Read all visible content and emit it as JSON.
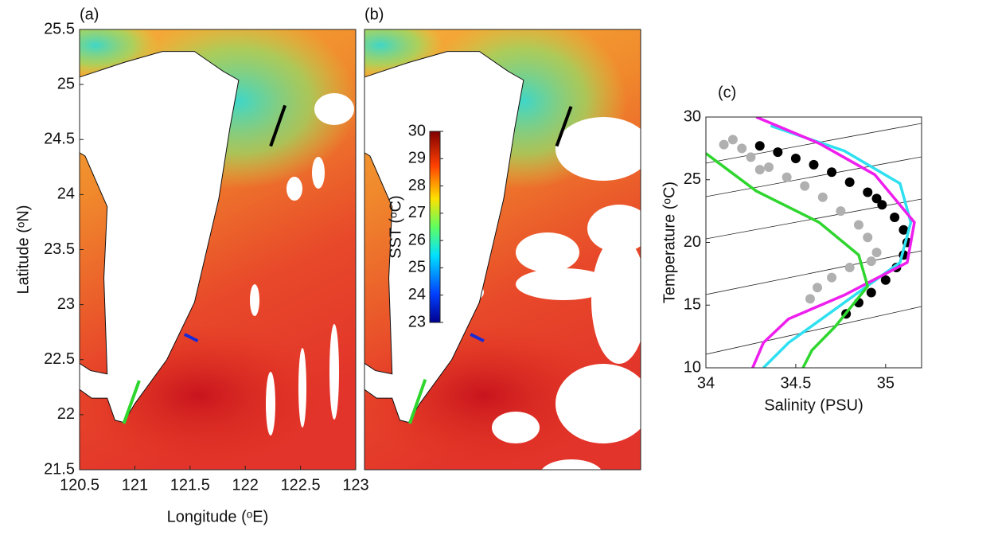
{
  "chart_data": [
    {
      "type": "map",
      "panel_label": "(a)",
      "xlabel": "Longitude (ᵒE)",
      "ylabel": "Latitude (ᵒN)",
      "xlim": [
        120.5,
        123
      ],
      "ylim": [
        21.5,
        25.5
      ],
      "xticks": [
        120.5,
        121,
        121.5,
        122,
        122.5,
        123
      ],
      "yticks": [
        21.5,
        22,
        22.5,
        23,
        23.5,
        24,
        24.5,
        25,
        25.5
      ],
      "transects": [
        {
          "color": "#000000",
          "lon": [
            122.23,
            122.36
          ],
          "lat": [
            24.44,
            24.81
          ]
        },
        {
          "color": "#1a2bd6",
          "lon": [
            121.45,
            121.57
          ],
          "lat": [
            22.73,
            22.67
          ]
        },
        {
          "color": "#2ed62e",
          "lon": [
            120.9,
            121.04
          ],
          "lat": [
            21.92,
            22.31
          ]
        }
      ]
    },
    {
      "type": "map",
      "panel_label": "(b)",
      "xlim": [
        120.5,
        123
      ],
      "ylim": [
        21.5,
        25.5
      ],
      "transects": [
        {
          "color": "#000000",
          "lon": [
            122.24,
            122.37
          ],
          "lat": [
            24.44,
            24.8
          ]
        },
        {
          "color": "#1a2bd6",
          "lon": [
            121.46,
            121.58
          ],
          "lat": [
            22.73,
            22.67
          ]
        },
        {
          "color": "#2ed62e",
          "lon": [
            120.91,
            121.05
          ],
          "lat": [
            21.92,
            22.32
          ]
        }
      ],
      "colorbar": {
        "label": "SST (ᵒC)",
        "lim": [
          23,
          30
        ],
        "ticks": [
          23,
          24,
          25,
          26,
          27,
          28,
          29,
          30
        ]
      }
    },
    {
      "type": "scatter",
      "panel_label": "(c)",
      "xlabel": "Salinity (PSU)",
      "ylabel": "Temperature (ᵒC)",
      "xlim": [
        34,
        35.2
      ],
      "ylim": [
        10,
        30
      ],
      "xticks": [
        34,
        34.5,
        35
      ],
      "yticks": [
        10,
        15,
        20,
        25,
        30
      ],
      "series": [
        {
          "color": "#b0b0b0",
          "mode": "markers",
          "x": [
            34.1,
            34.15,
            34.2,
            34.25,
            34.3,
            34.35,
            34.45,
            34.55,
            34.65,
            34.75,
            34.85,
            34.9,
            34.95,
            34.92,
            34.8,
            34.7,
            34.62,
            34.58
          ],
          "y": [
            27.8,
            28.2,
            27.5,
            26.8,
            25.8,
            26,
            25.2,
            24.5,
            23.6,
            22.5,
            21.4,
            20.4,
            19.2,
            18.5,
            18,
            17.2,
            16.4,
            15.5
          ]
        },
        {
          "color": "#000000",
          "mode": "markers",
          "x": [
            34.3,
            34.4,
            34.5,
            34.6,
            34.7,
            34.8,
            34.9,
            34.95,
            34.98,
            35.05,
            35.1,
            35.12,
            35.1,
            35.06,
            35,
            34.92,
            34.85,
            34.78
          ],
          "y": [
            27.7,
            27.2,
            26.7,
            26.2,
            25.6,
            24.8,
            24,
            23.5,
            23,
            22,
            21,
            20,
            19,
            18,
            17,
            16,
            15.2,
            14.3
          ]
        },
        {
          "color": "#2ee0f0",
          "mode": "line",
          "x": [
            34.36,
            34.77,
            35.08,
            35.14,
            35.08,
            34.77,
            34.46,
            34.32
          ],
          "y": [
            29.3,
            27.3,
            24.7,
            21.6,
            18.4,
            15.2,
            12,
            10
          ]
        },
        {
          "color": "#ee1fee",
          "mode": "line",
          "x": [
            34.28,
            34.63,
            34.94,
            35.16,
            35.12,
            34.77,
            34.46,
            34.32,
            34.26
          ],
          "y": [
            30,
            27.9,
            25.4,
            21.6,
            18.4,
            15.8,
            13.9,
            12,
            10
          ]
        },
        {
          "color": "#2ed62e",
          "mode": "line",
          "x": [
            34,
            34.28,
            34.63,
            34.85,
            34.9,
            34.72,
            34.59,
            34.54
          ],
          "y": [
            27.1,
            24.1,
            21.6,
            19,
            16.5,
            13.3,
            11.4,
            10
          ]
        }
      ]
    }
  ]
}
